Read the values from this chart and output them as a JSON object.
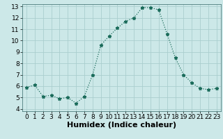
{
  "x": [
    0,
    1,
    2,
    3,
    4,
    5,
    6,
    7,
    8,
    9,
    10,
    11,
    12,
    13,
    14,
    15,
    16,
    17,
    18,
    19,
    20,
    21,
    22,
    23
  ],
  "y": [
    5.9,
    6.1,
    5.1,
    5.2,
    4.9,
    5.0,
    4.5,
    5.1,
    7.0,
    9.6,
    10.4,
    11.1,
    11.7,
    12.0,
    12.9,
    12.9,
    12.7,
    10.6,
    8.5,
    7.0,
    6.3,
    5.8,
    5.7,
    5.8
  ],
  "xlabel": "Humidex (Indice chaleur)",
  "ylim": [
    3.8,
    13.2
  ],
  "xlim": [
    -0.5,
    23.5
  ],
  "yticks": [
    4,
    5,
    6,
    7,
    8,
    9,
    10,
    11,
    12,
    13
  ],
  "xticks": [
    0,
    1,
    2,
    3,
    4,
    5,
    6,
    7,
    8,
    9,
    10,
    11,
    12,
    13,
    14,
    15,
    16,
    17,
    18,
    19,
    20,
    21,
    22,
    23
  ],
  "line_color": "#1a6b5a",
  "marker": "*",
  "marker_size": 3.5,
  "bg_color": "#cce8e8",
  "grid_color": "#aacece",
  "xlabel_fontsize": 8,
  "tick_fontsize": 6.5
}
